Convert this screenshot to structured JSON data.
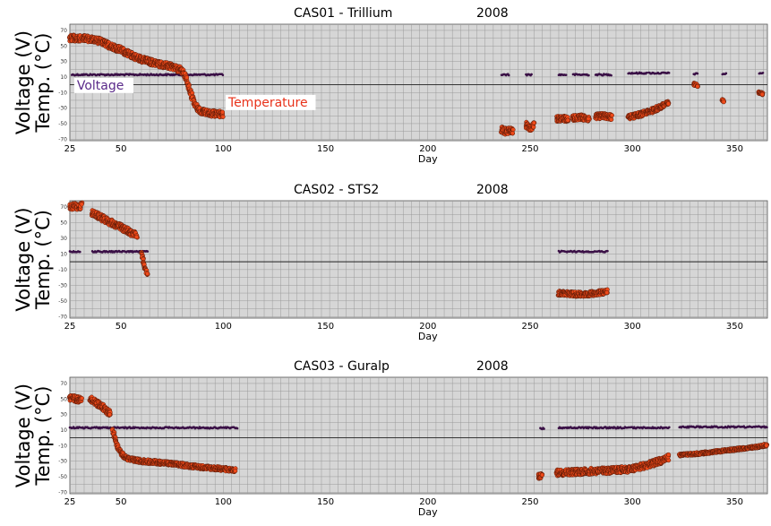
{
  "colors": {
    "voltage": "#3a1046",
    "temperature": "#ef4a1a",
    "temperature_edge": "#5a1a08",
    "grid": "#9a9a9a",
    "plot_bg": "#d6d6d6",
    "voltage_label": "#5a2a8a",
    "temperature_label": "#e8321a"
  },
  "chart_data": [
    {
      "type": "scatter",
      "title": "CAS01 - Trillium",
      "year": "2008",
      "xlabel": "Day",
      "ylabel_line1": "Voltage (V)",
      "ylabel_line2": "Temp. (°C)",
      "xlim": [
        25,
        366
      ],
      "ylim": [
        -72,
        78
      ],
      "x_ticks": [
        25,
        50,
        100,
        150,
        200,
        250,
        300,
        350
      ],
      "y_ticks": [
        70,
        50,
        30,
        10,
        -10,
        -30,
        -50,
        -70
      ],
      "annotations": [
        {
          "text": "Voltage",
          "x": 28,
          "y": -6,
          "color_key": "voltage_label"
        },
        {
          "text": "Temperature",
          "x": 102,
          "y": -28,
          "color_key": "temperature_label"
        }
      ],
      "series": [
        {
          "name": "Voltage",
          "kind": "voltage",
          "segments": [
            {
              "x": [
                26,
                100
              ],
              "y": [
                13,
                13
              ]
            },
            {
              "x": [
                236,
                240
              ],
              "y": [
                13,
                13
              ]
            },
            {
              "x": [
                248,
                251
              ],
              "y": [
                13,
                13
              ]
            },
            {
              "x": [
                264,
                268
              ],
              "y": [
                13,
                13
              ]
            },
            {
              "x": [
                271,
                279
              ],
              "y": [
                13,
                13
              ]
            },
            {
              "x": [
                282,
                290
              ],
              "y": [
                13,
                13
              ]
            },
            {
              "x": [
                298,
                307
              ],
              "y": [
                15,
                15
              ]
            },
            {
              "x": [
                308,
                318
              ],
              "y": [
                15,
                15
              ]
            },
            {
              "x": [
                330,
                332
              ],
              "y": [
                14,
                14
              ]
            },
            {
              "x": [
                344,
                346
              ],
              "y": [
                14,
                14
              ]
            },
            {
              "x": [
                362,
                364
              ],
              "y": [
                15,
                15
              ]
            }
          ]
        },
        {
          "name": "Temperature",
          "kind": "temperature",
          "segments": [
            {
              "x": [
                25,
                30,
                35,
                40,
                45,
                50,
                55,
                60,
                65,
                70,
                75,
                80,
                82,
                84,
                86,
                88,
                90,
                95,
                100
              ],
              "y": [
                60,
                60,
                59,
                56,
                50,
                45,
                38,
                33,
                29,
                26,
                23,
                18,
                8,
                -10,
                -25,
                -32,
                -35,
                -37,
                -38
              ],
              "spread": 8
            },
            {
              "x": [
                236,
                238,
                240,
                242
              ],
              "y": [
                -58,
                -60,
                -58,
                -60
              ],
              "spread": 8
            },
            {
              "x": [
                248,
                250,
                252
              ],
              "y": [
                -52,
                -56,
                -50
              ],
              "spread": 8
            },
            {
              "x": [
                263,
                266,
                269
              ],
              "y": [
                -44,
                -43,
                -45
              ],
              "spread": 7
            },
            {
              "x": [
                271,
                275,
                279
              ],
              "y": [
                -43,
                -42,
                -44
              ],
              "spread": 7
            },
            {
              "x": [
                282,
                286,
                290
              ],
              "y": [
                -41,
                -40,
                -42
              ],
              "spread": 7
            },
            {
              "x": [
                298,
                304,
                310,
                315,
                318
              ],
              "y": [
                -42,
                -38,
                -33,
                -27,
                -23
              ],
              "spread": 6
            },
            {
              "x": [
                330,
                332
              ],
              "y": [
                1,
                -1
              ],
              "spread": 3
            },
            {
              "x": [
                344,
                345
              ],
              "y": [
                -20,
                -21
              ],
              "spread": 3
            },
            {
              "x": [
                362,
                364
              ],
              "y": [
                -10,
                -12
              ],
              "spread": 3
            }
          ]
        }
      ]
    },
    {
      "type": "scatter",
      "title": "CAS02 - STS2",
      "year": "2008",
      "xlabel": "Day",
      "ylabel_line1": "Voltage (V)",
      "ylabel_line2": "Temp. (°C)",
      "xlim": [
        25,
        366
      ],
      "ylim": [
        -72,
        78
      ],
      "x_ticks": [
        25,
        50,
        100,
        150,
        200,
        250,
        300,
        350
      ],
      "y_ticks": [
        70,
        50,
        30,
        10,
        -10,
        -30,
        -50,
        -70
      ],
      "annotations": [],
      "series": [
        {
          "name": "Voltage",
          "kind": "voltage",
          "segments": [
            {
              "x": [
                25,
                30
              ],
              "y": [
                13,
                13
              ]
            },
            {
              "x": [
                36,
                63
              ],
              "y": [
                13,
                13
              ]
            },
            {
              "x": [
                264,
                288
              ],
              "y": [
                13,
                13
              ]
            }
          ]
        },
        {
          "name": "Temperature",
          "kind": "temperature",
          "segments": [
            {
              "x": [
                25,
                27,
                29,
                31
              ],
              "y": [
                70,
                71,
                70,
                72
              ],
              "spread": 8
            },
            {
              "x": [
                36,
                40,
                45,
                50,
                55,
                58
              ],
              "y": [
                62,
                57,
                50,
                44,
                37,
                34
              ],
              "spread": 8
            },
            {
              "x": [
                60,
                61,
                62,
                63
              ],
              "y": [
                12,
                0,
                -10,
                -18
              ],
              "spread": 3
            },
            {
              "x": [
                264,
                270,
                276,
                282,
                288
              ],
              "y": [
                -40,
                -41,
                -42,
                -40,
                -38
              ],
              "spread": 6
            }
          ]
        }
      ]
    },
    {
      "type": "scatter",
      "title": "CAS03 - Guralp",
      "year": "2008",
      "xlabel": "Day",
      "ylabel_line1": "Voltage (V)",
      "ylabel_line2": "Temp. (°C)",
      "xlim": [
        25,
        366
      ],
      "ylim": [
        -72,
        78
      ],
      "x_ticks": [
        25,
        50,
        100,
        150,
        200,
        250,
        300,
        350
      ],
      "y_ticks": [
        70,
        50,
        30,
        10,
        -10,
        -30,
        -50,
        -70
      ],
      "annotations": [],
      "series": [
        {
          "name": "Voltage",
          "kind": "voltage",
          "segments": [
            {
              "x": [
                25,
                107
              ],
              "y": [
                13,
                13
              ]
            },
            {
              "x": [
                255,
                257
              ],
              "y": [
                12,
                12
              ]
            },
            {
              "x": [
                264,
                318
              ],
              "y": [
                13,
                13
              ]
            },
            {
              "x": [
                323,
                366
              ],
              "y": [
                14,
                14
              ]
            }
          ]
        },
        {
          "name": "Temperature",
          "kind": "temperature",
          "segments": [
            {
              "x": [
                25,
                28,
                31
              ],
              "y": [
                52,
                50,
                48
              ],
              "spread": 8
            },
            {
              "x": [
                35,
                38,
                42,
                45
              ],
              "y": [
                50,
                45,
                38,
                30
              ],
              "spread": 8
            },
            {
              "x": [
                46,
                47,
                48,
                50,
                52,
                55,
                60,
                70,
                80,
                90,
                100,
                106
              ],
              "y": [
                10,
                0,
                -10,
                -20,
                -25,
                -28,
                -30,
                -32,
                -35,
                -38,
                -40,
                -42
              ],
              "spread": 5
            },
            {
              "x": [
                254,
                256
              ],
              "y": [
                -50,
                -48
              ],
              "spread": 6
            },
            {
              "x": [
                263,
                270,
                280,
                290,
                300,
                310,
                318
              ],
              "y": [
                -45,
                -44,
                -43,
                -42,
                -40,
                -33,
                -25
              ],
              "spread": 8
            },
            {
              "x": [
                323,
                330,
                340,
                350,
                360,
                366
              ],
              "y": [
                -22,
                -21,
                -18,
                -15,
                -12,
                -9
              ],
              "spread": 3
            }
          ]
        }
      ]
    }
  ]
}
